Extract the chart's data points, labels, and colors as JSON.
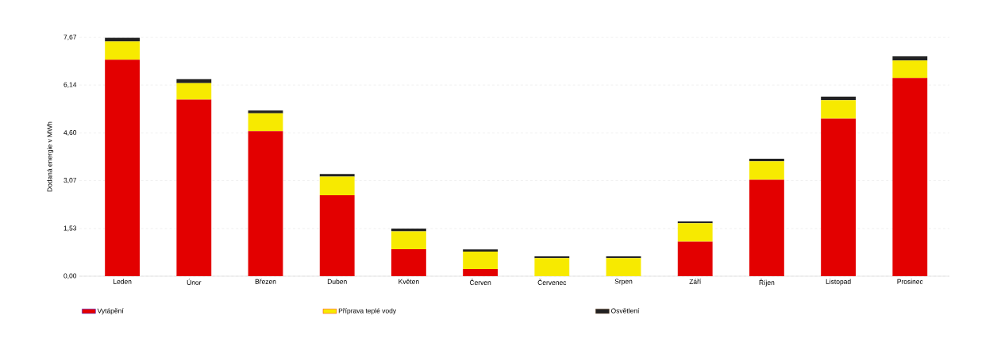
{
  "chart_data": {
    "type": "bar",
    "stacked": true,
    "ylabel": "Dodaná energie v MWh",
    "categories": [
      "Leden",
      "Únor",
      "Březen",
      "Duben",
      "Květen",
      "Červen",
      "Červenec",
      "Srpen",
      "Září",
      "Říjen",
      "Listopad",
      "Prosinec"
    ],
    "series": [
      {
        "name": "Vytápění",
        "color": "#e30000",
        "values": [
          6.95,
          5.67,
          4.66,
          2.6,
          0.87,
          0.23,
          0,
          0,
          1.11,
          3.1,
          5.06,
          6.37
        ]
      },
      {
        "name": "Příprava teplé vody",
        "color": "#f7ea00",
        "values": [
          0.59,
          0.53,
          0.57,
          0.6,
          0.57,
          0.56,
          0.58,
          0.58,
          0.59,
          0.59,
          0.59,
          0.56
        ]
      },
      {
        "name": "Osvětlení",
        "color": "#222222",
        "values": [
          0.12,
          0.13,
          0.09,
          0.08,
          0.09,
          0.07,
          0.06,
          0.06,
          0.06,
          0.08,
          0.12,
          0.13
        ]
      }
    ],
    "ylim": [
      0,
      7.67
    ],
    "yticks": [
      {
        "value": 0,
        "label": "0,00"
      },
      {
        "value": 1.53,
        "label": "1,53"
      },
      {
        "value": 3.07,
        "label": "3,07"
      },
      {
        "value": 4.6,
        "label": "4,60"
      },
      {
        "value": 6.14,
        "label": "6,14"
      },
      {
        "value": 7.67,
        "label": "7,67"
      }
    ],
    "grid": "y",
    "legend": "bottom"
  }
}
